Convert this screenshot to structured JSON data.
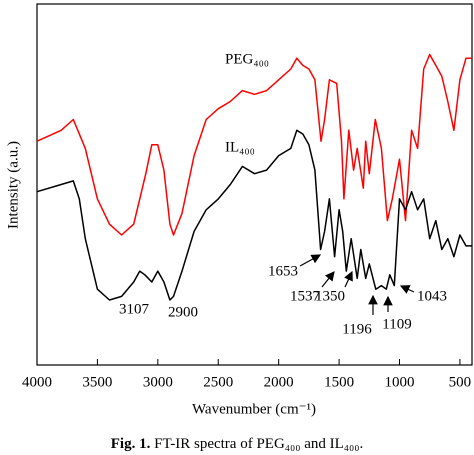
{
  "chart_data": {
    "type": "line",
    "x_label": "Wavenumber (cm⁻¹)",
    "y_label": "Intensity (a.u.)",
    "caption_prefix": "Fig. 1.",
    "caption": "FT-IR spectra of PEG₄₀₀ and IL₄₀₀.",
    "xlim": [
      4000,
      400
    ],
    "xticks": [
      4000,
      3500,
      3000,
      2500,
      2000,
      1500,
      1000,
      500
    ],
    "ylim": [
      0,
      100
    ],
    "series": [
      {
        "name": "PEG₄₀₀",
        "color": "#ff0000",
        "x": [
          4000,
          3800,
          3700,
          3600,
          3500,
          3400,
          3300,
          3200,
          3100,
          3050,
          3000,
          2950,
          2900,
          2870,
          2800,
          2700,
          2600,
          2500,
          2400,
          2300,
          2200,
          2100,
          2000,
          1900,
          1850,
          1800,
          1750,
          1700,
          1650,
          1620,
          1580,
          1520,
          1480,
          1460,
          1420,
          1380,
          1350,
          1300,
          1280,
          1250,
          1200,
          1150,
          1100,
          1060,
          1000,
          950,
          900,
          850,
          800,
          750,
          700,
          650,
          600,
          550,
          500,
          450,
          400
        ],
        "values": [
          62,
          65,
          68,
          60,
          46,
          39,
          36,
          39,
          53,
          61,
          61,
          54,
          39,
          36,
          42,
          58,
          68,
          71,
          73,
          76,
          75,
          76,
          79,
          82,
          85,
          83,
          82,
          79,
          62,
          68,
          79,
          78,
          62,
          46,
          65,
          54,
          60,
          49,
          62,
          53,
          68,
          60,
          40,
          46,
          57,
          40,
          65,
          60,
          82,
          86,
          83,
          80,
          73,
          65,
          79,
          85,
          85
        ]
      },
      {
        "name": "IL₄₀₀",
        "color": "#000000",
        "x": [
          4000,
          3800,
          3700,
          3650,
          3600,
          3500,
          3400,
          3300,
          3200,
          3150,
          3107,
          3050,
          3000,
          2950,
          2900,
          2870,
          2800,
          2700,
          2600,
          2500,
          2400,
          2300,
          2200,
          2100,
          2000,
          1900,
          1850,
          1800,
          1750,
          1700,
          1653,
          1620,
          1580,
          1537,
          1500,
          1470,
          1440,
          1400,
          1350,
          1320,
          1280,
          1250,
          1196,
          1150,
          1109,
          1080,
          1043,
          1000,
          950,
          900,
          850,
          800,
          750,
          700,
          650,
          600,
          550,
          500,
          450,
          400
        ],
        "values": [
          48,
          50,
          51,
          46,
          35,
          21,
          18,
          19,
          23,
          26,
          25,
          23,
          26,
          23,
          18,
          19,
          26,
          37,
          43,
          46,
          50,
          55,
          53,
          54,
          58,
          60,
          65,
          64,
          61,
          54,
          32,
          37,
          46,
          30,
          43,
          37,
          26,
          35,
          24,
          32,
          24,
          28,
          21,
          22,
          21,
          25,
          22,
          46,
          43,
          48,
          43,
          46,
          35,
          40,
          32,
          35,
          30,
          36,
          33,
          33
        ]
      }
    ],
    "annotations": [
      "3107",
      "2900",
      "1653",
      "1537",
      "1350",
      "1196",
      "1109",
      "1043"
    ]
  }
}
